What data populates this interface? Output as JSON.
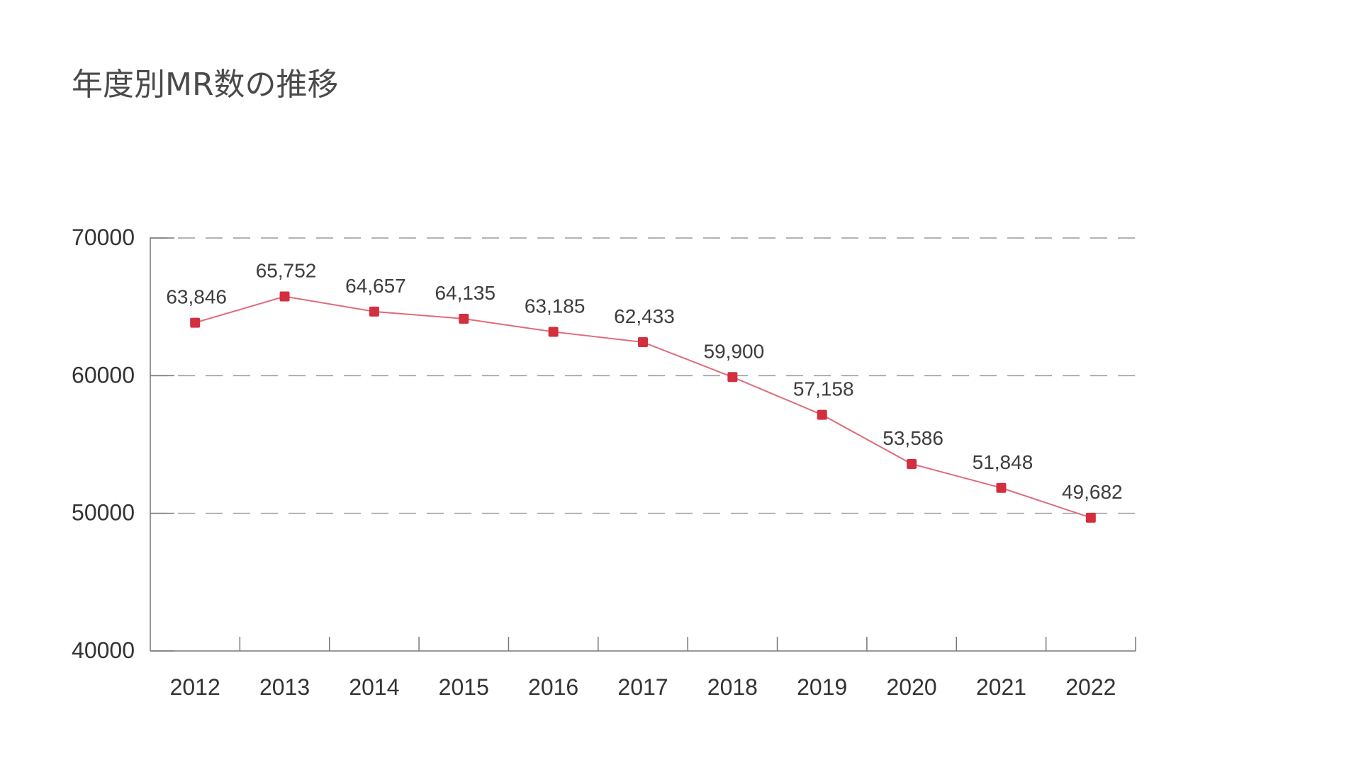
{
  "chart_data": {
    "type": "line",
    "title": "年度別MR数の推移",
    "xlabel": "",
    "ylabel": "",
    "categories": [
      "2012",
      "2013",
      "2014",
      "2015",
      "2016",
      "2017",
      "2018",
      "2019",
      "2020",
      "2021",
      "2022"
    ],
    "series": [
      {
        "values": [
          63846,
          65752,
          64657,
          64135,
          63185,
          62433,
          59900,
          57158,
          53586,
          51848,
          49682
        ],
        "data_labels": [
          "63,846",
          "65,752",
          "64,657",
          "64,135",
          "63,185",
          "62,433",
          "59,900",
          "57,158",
          "53,586",
          "51,848",
          "49,682"
        ],
        "color": "#e06b78",
        "marker_color": "#d32f3f"
      }
    ],
    "ylim": [
      40000,
      70000
    ],
    "yticks": [
      "40000",
      "50000",
      "60000",
      "70000"
    ],
    "grid": true,
    "grid_style": "dashed",
    "legend": "none"
  }
}
